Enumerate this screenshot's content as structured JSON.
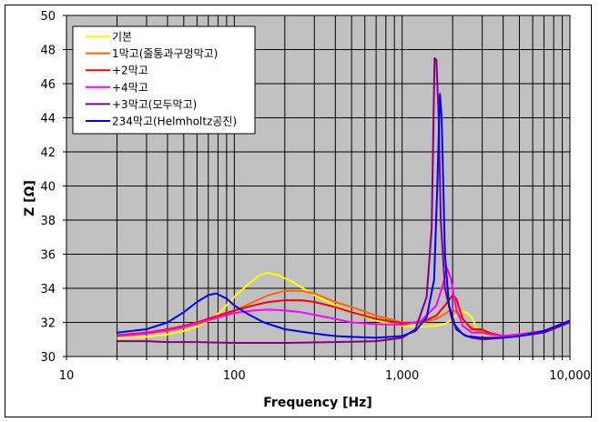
{
  "chart_data": {
    "type": "line",
    "title": "",
    "xlabel": "Frequency [Hz]",
    "ylabel": "Z [Ω]",
    "xscale": "log",
    "xlim": [
      10,
      10000
    ],
    "ylim": [
      30,
      50
    ],
    "xticks": [
      "10",
      "100",
      "1,000",
      "10,000"
    ],
    "yticks": [
      "30",
      "32",
      "34",
      "36",
      "38",
      "40",
      "42",
      "44",
      "46",
      "48",
      "50"
    ],
    "grid": true,
    "plot_background": "#C0C0C0",
    "legend_position": "upper-left",
    "series": [
      {
        "name": "기본",
        "color": "#FFFF00",
        "x": [
          20,
          30,
          40,
          50,
          60,
          70,
          80,
          90,
          100,
          120,
          140,
          155,
          180,
          220,
          300,
          400,
          500,
          700,
          1000,
          1300,
          1600,
          1800,
          2000,
          2200,
          2400,
          2600,
          2800,
          3000,
          3300,
          4000,
          5000,
          7000,
          10000
        ],
        "y": [
          31.05,
          31.15,
          31.3,
          31.5,
          31.75,
          32.1,
          32.5,
          33.0,
          33.5,
          34.2,
          34.75,
          34.9,
          34.8,
          34.4,
          33.6,
          33.0,
          32.6,
          32.1,
          31.8,
          31.75,
          31.8,
          31.9,
          32.2,
          32.6,
          32.6,
          32.3,
          31.6,
          31.3,
          31.2,
          31.2,
          31.3,
          31.5,
          32.1
        ]
      },
      {
        "name": "1막고(줄통과구멍막고)",
        "color": "#FF6600",
        "x": [
          20,
          30,
          40,
          50,
          60,
          80,
          100,
          130,
          160,
          200,
          250,
          300,
          400,
          500,
          700,
          1000,
          1300,
          1600,
          1800,
          2000,
          2200,
          2500,
          2800,
          3000,
          3300,
          4000,
          5000,
          7000,
          10000
        ],
        "y": [
          31.2,
          31.35,
          31.5,
          31.7,
          31.9,
          32.3,
          32.7,
          33.2,
          33.6,
          33.85,
          33.85,
          33.7,
          33.2,
          32.9,
          32.4,
          32.0,
          32.0,
          32.2,
          32.5,
          32.8,
          32.4,
          31.8,
          31.5,
          31.5,
          31.3,
          31.2,
          31.3,
          31.5,
          32.1
        ]
      },
      {
        "name": "+2막고",
        "color": "#FF0000",
        "x": [
          20,
          30,
          40,
          50,
          60,
          80,
          100,
          130,
          160,
          200,
          250,
          300,
          400,
          500,
          700,
          1000,
          1300,
          1600,
          1800,
          2000,
          2100,
          2300,
          2600,
          3000,
          3300,
          4000,
          5000,
          7000,
          10000
        ],
        "y": [
          31.25,
          31.4,
          31.6,
          31.8,
          32.0,
          32.4,
          32.7,
          33.0,
          33.2,
          33.3,
          33.3,
          33.2,
          32.9,
          32.6,
          32.2,
          31.95,
          32.0,
          32.4,
          33.0,
          33.6,
          33.4,
          32.2,
          31.6,
          31.6,
          31.4,
          31.2,
          31.3,
          31.5,
          32.1
        ]
      },
      {
        "name": "+4막고",
        "color": "#FF00FF",
        "x": [
          20,
          30,
          40,
          50,
          60,
          80,
          100,
          130,
          160,
          200,
          250,
          300,
          400,
          500,
          700,
          1000,
          1300,
          1600,
          1750,
          1850,
          1950,
          2100,
          2300,
          2600,
          3000,
          3300,
          4000,
          5000,
          7000,
          10000
        ],
        "y": [
          31.2,
          31.35,
          31.55,
          31.75,
          31.95,
          32.3,
          32.55,
          32.7,
          32.75,
          32.7,
          32.6,
          32.45,
          32.2,
          32.0,
          31.9,
          31.85,
          32.1,
          33.0,
          34.2,
          35.2,
          34.6,
          32.8,
          31.8,
          31.4,
          31.4,
          31.3,
          31.2,
          31.3,
          31.5,
          32.1
        ]
      },
      {
        "name": "+3막고(모두막고)",
        "color": "#800080",
        "x": [
          20,
          30,
          40,
          60,
          100,
          200,
          400,
          700,
          1000,
          1200,
          1400,
          1500,
          1560,
          1600,
          1650,
          1700,
          1800,
          2000,
          2300,
          2600,
          3000,
          4000,
          5000,
          7000,
          10000
        ],
        "y": [
          30.9,
          30.9,
          30.85,
          30.85,
          30.8,
          30.8,
          30.85,
          30.9,
          31.1,
          31.6,
          33.5,
          37.5,
          47.5,
          47.4,
          44.0,
          38.0,
          34.0,
          32.0,
          31.3,
          31.1,
          31.0,
          31.1,
          31.2,
          31.4,
          32.0
        ]
      },
      {
        "name": "234막고(Helmholtz공진)",
        "color": "#0000FF",
        "x": [
          20,
          30,
          40,
          50,
          60,
          70,
          78,
          90,
          100,
          120,
          150,
          200,
          300,
          400,
          500,
          700,
          1000,
          1200,
          1400,
          1550,
          1620,
          1680,
          1720,
          1800,
          1900,
          2100,
          2400,
          3000,
          4000,
          5000,
          7000,
          10000
        ],
        "y": [
          31.4,
          31.6,
          32.0,
          32.6,
          33.2,
          33.6,
          33.7,
          33.4,
          33.0,
          32.5,
          32.0,
          31.6,
          31.35,
          31.2,
          31.15,
          31.1,
          31.2,
          31.5,
          32.3,
          34.5,
          40.0,
          45.4,
          44.0,
          36.0,
          33.0,
          31.6,
          31.2,
          31.1,
          31.1,
          31.2,
          31.5,
          32.1
        ]
      }
    ]
  },
  "axes": {
    "xlabel": "Frequency [Hz]",
    "ylabel": "Z [Ω]"
  }
}
